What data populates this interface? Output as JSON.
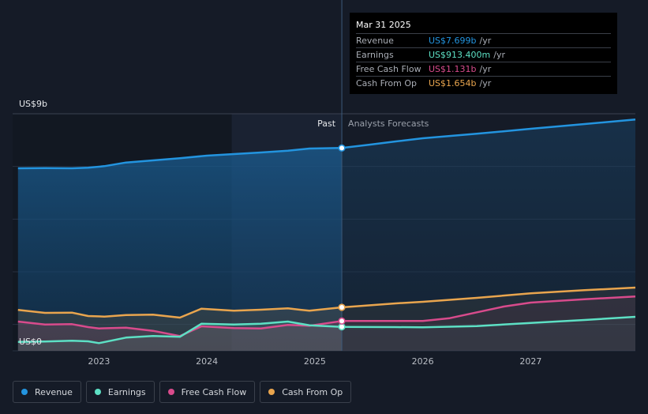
{
  "chart_data": {
    "type": "area",
    "y_axis_labels": {
      "top": "US$9b",
      "bottom": "US$0"
    },
    "ylim": [
      0,
      9
    ],
    "x_ticks": [
      "2023",
      "2024",
      "2025",
      "2026",
      "2027"
    ],
    "xlim": [
      2022.2,
      2027.97
    ],
    "divider_x": 2025.25,
    "past_start_shade": 2024.23,
    "past_label": "Past",
    "forecast_label": "Analysts Forecasts",
    "series": [
      {
        "name": "Revenue",
        "color": "#2394df",
        "past": [
          [
            2022.25,
            6.93
          ],
          [
            2022.5,
            6.94
          ],
          [
            2022.75,
            6.93
          ],
          [
            2022.9,
            6.95
          ],
          [
            2023.05,
            7.01
          ],
          [
            2023.25,
            7.15
          ],
          [
            2023.5,
            7.23
          ],
          [
            2023.75,
            7.31
          ],
          [
            2024.0,
            7.41
          ],
          [
            2024.25,
            7.47
          ],
          [
            2024.5,
            7.53
          ],
          [
            2024.75,
            7.6
          ],
          [
            2024.95,
            7.68
          ],
          [
            2025.25,
            7.7
          ]
        ],
        "forecast": [
          [
            2025.25,
            7.7
          ],
          [
            2025.5,
            7.82
          ],
          [
            2025.75,
            7.95
          ],
          [
            2026.0,
            8.07
          ],
          [
            2026.5,
            8.24
          ],
          [
            2027.0,
            8.43
          ],
          [
            2027.5,
            8.61
          ],
          [
            2027.97,
            8.78
          ]
        ]
      },
      {
        "name": "Earnings",
        "color": "#5de0c4",
        "past": [
          [
            2022.25,
            0.34
          ],
          [
            2022.5,
            0.35
          ],
          [
            2022.75,
            0.38
          ],
          [
            2022.9,
            0.36
          ],
          [
            2023.0,
            0.29
          ],
          [
            2023.25,
            0.5
          ],
          [
            2023.5,
            0.56
          ],
          [
            2023.75,
            0.53
          ],
          [
            2023.95,
            1.03
          ],
          [
            2024.25,
            1.0
          ],
          [
            2024.5,
            1.03
          ],
          [
            2024.75,
            1.11
          ],
          [
            2024.95,
            0.97
          ],
          [
            2025.25,
            0.91
          ]
        ],
        "forecast": [
          [
            2025.25,
            0.91
          ],
          [
            2025.75,
            0.9
          ],
          [
            2026.0,
            0.89
          ],
          [
            2026.5,
            0.94
          ],
          [
            2027.0,
            1.06
          ],
          [
            2027.5,
            1.17
          ],
          [
            2027.97,
            1.29
          ]
        ]
      },
      {
        "name": "Free Cash Flow",
        "color": "#d84b8c",
        "past": [
          [
            2022.25,
            1.11
          ],
          [
            2022.5,
            1.0
          ],
          [
            2022.75,
            1.01
          ],
          [
            2022.9,
            0.9
          ],
          [
            2023.0,
            0.85
          ],
          [
            2023.25,
            0.88
          ],
          [
            2023.5,
            0.76
          ],
          [
            2023.75,
            0.56
          ],
          [
            2023.95,
            0.93
          ],
          [
            2024.25,
            0.86
          ],
          [
            2024.5,
            0.85
          ],
          [
            2024.75,
            0.98
          ],
          [
            2024.95,
            0.95
          ],
          [
            2025.25,
            1.13
          ]
        ],
        "forecast": [
          [
            2025.25,
            1.13
          ],
          [
            2025.75,
            1.13
          ],
          [
            2026.0,
            1.13
          ],
          [
            2026.25,
            1.24
          ],
          [
            2026.75,
            1.68
          ],
          [
            2027.0,
            1.83
          ],
          [
            2027.5,
            1.96
          ],
          [
            2027.97,
            2.06
          ]
        ]
      },
      {
        "name": "Cash From Op",
        "color": "#e9a54e",
        "past": [
          [
            2022.25,
            1.55
          ],
          [
            2022.5,
            1.44
          ],
          [
            2022.75,
            1.45
          ],
          [
            2022.9,
            1.32
          ],
          [
            2023.05,
            1.3
          ],
          [
            2023.25,
            1.36
          ],
          [
            2023.5,
            1.37
          ],
          [
            2023.75,
            1.26
          ],
          [
            2023.95,
            1.6
          ],
          [
            2024.25,
            1.52
          ],
          [
            2024.5,
            1.56
          ],
          [
            2024.75,
            1.61
          ],
          [
            2024.95,
            1.52
          ],
          [
            2025.25,
            1.65
          ]
        ],
        "forecast": [
          [
            2025.25,
            1.65
          ],
          [
            2025.75,
            1.8
          ],
          [
            2026.0,
            1.86
          ],
          [
            2026.5,
            2.01
          ],
          [
            2027.0,
            2.18
          ],
          [
            2027.5,
            2.3
          ],
          [
            2027.97,
            2.4
          ]
        ]
      }
    ]
  },
  "tooltip": {
    "date": "Mar 31 2025",
    "rows": [
      {
        "label": "Revenue",
        "value": "US$7.699b",
        "unit": "/yr",
        "color": "#2394df"
      },
      {
        "label": "Earnings",
        "value": "US$913.400m",
        "unit": "/yr",
        "color": "#5de0c4"
      },
      {
        "label": "Free Cash Flow",
        "value": "US$1.131b",
        "unit": "/yr",
        "color": "#d84b8c"
      },
      {
        "label": "Cash From Op",
        "value": "US$1.654b",
        "unit": "/yr",
        "color": "#e9a54e"
      }
    ]
  },
  "legend": {
    "items": [
      {
        "label": "Revenue",
        "color": "#2394df"
      },
      {
        "label": "Earnings",
        "color": "#5de0c4"
      },
      {
        "label": "Free Cash Flow",
        "color": "#d84b8c"
      },
      {
        "label": "Cash From Op",
        "color": "#e9a54e"
      }
    ]
  }
}
